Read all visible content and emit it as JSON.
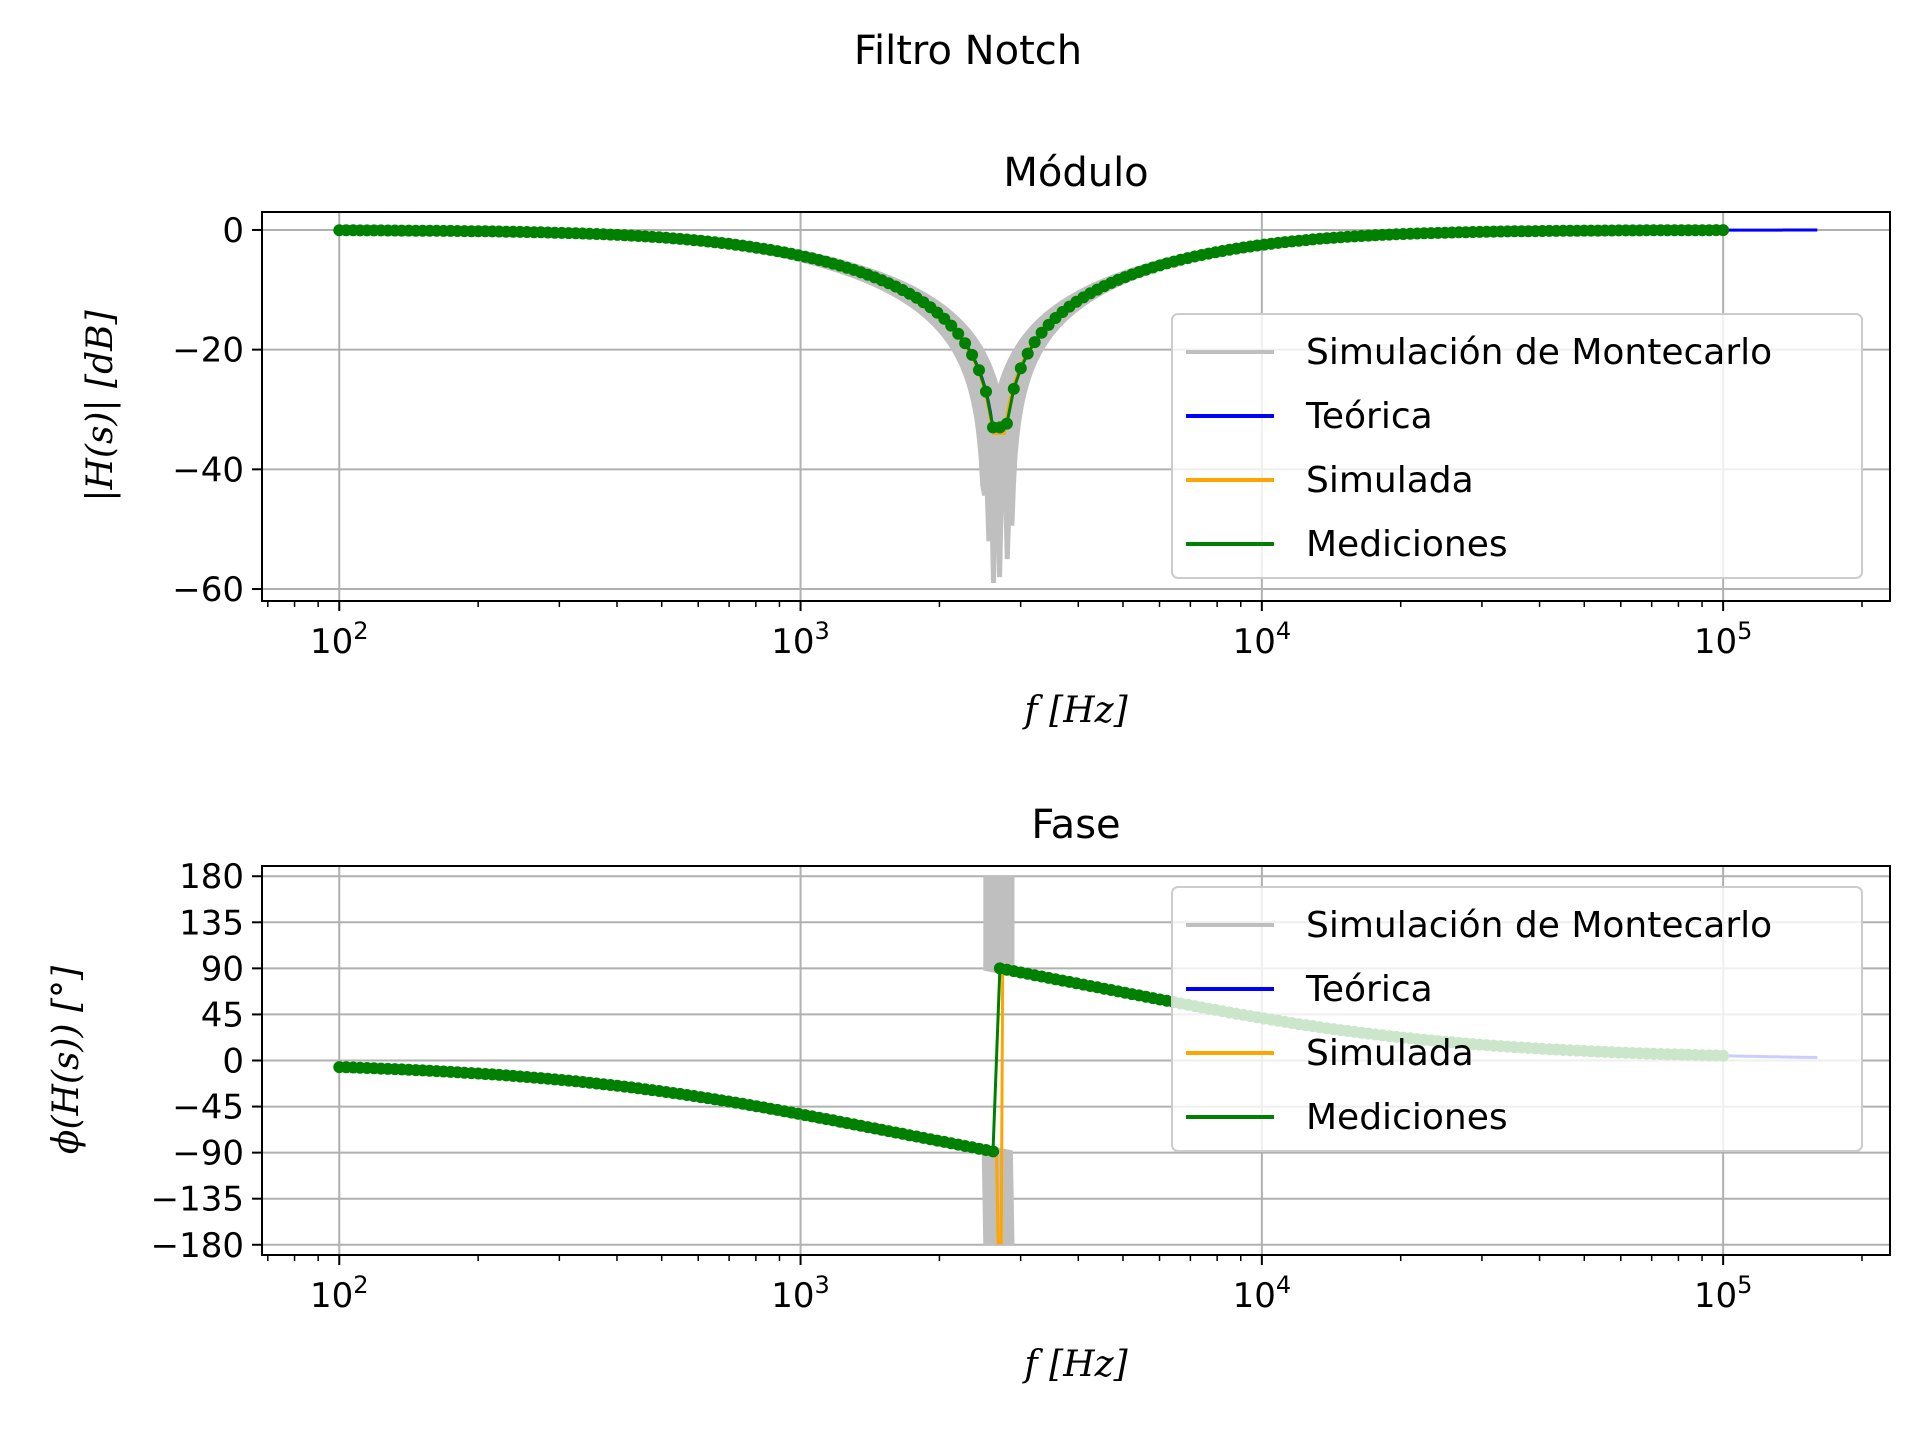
{
  "figure": {
    "suptitle": "Filtro Notch"
  },
  "legend_entries": [
    {
      "label": "Simulación de Montecarlo",
      "color": "#bfbfbf"
    },
    {
      "label": "Teórica",
      "color": "#0000ff"
    },
    {
      "label": "Simulada",
      "color": "#ffa500"
    },
    {
      "label": "Mediciones",
      "color": "#008000"
    }
  ],
  "chart_data": [
    {
      "type": "line",
      "title": "Módulo",
      "xlabel": "f [Hz]",
      "ylabel": "|H(s)| [dB]",
      "xscale": "log",
      "xlim": [
        68,
        230000
      ],
      "ylim": [
        -62,
        3
      ],
      "xticks": [
        100,
        1000,
        10000,
        100000
      ],
      "xtick_labels": [
        "10^2",
        "10^3",
        "10^4",
        "10^5"
      ],
      "yticks": [
        0,
        -20,
        -40,
        -60
      ],
      "ytick_labels": [
        "0",
        "−20",
        "−40",
        "−60"
      ],
      "grid": true,
      "legend_position": "right",
      "notch_frequency_hz": 2700,
      "series": [
        {
          "name": "Simulación de Montecarlo",
          "color": "#bfbfbf",
          "kind": "band",
          "min_depth_db": -59
        },
        {
          "name": "Teórica",
          "color": "#0000ff",
          "x_range": [
            100,
            160000
          ],
          "min_db": -33
        },
        {
          "name": "Simulada",
          "color": "#ffa500",
          "x_range": [
            100,
            100000
          ],
          "min_db": -34
        },
        {
          "name": "Mediciones",
          "color": "#008000",
          "markers": true,
          "x_range": [
            100,
            100000
          ],
          "min_db": -33
        }
      ]
    },
    {
      "type": "line",
      "title": "Fase",
      "xlabel": "f [Hz]",
      "ylabel": "ϕ(H(s)) [°]",
      "xscale": "log",
      "xlim": [
        68,
        230000
      ],
      "ylim": [
        -190,
        190
      ],
      "xticks": [
        100,
        1000,
        10000,
        100000
      ],
      "xtick_labels": [
        "10^2",
        "10^3",
        "10^4",
        "10^5"
      ],
      "yticks": [
        180,
        135,
        90,
        45,
        0,
        -45,
        -90,
        -135,
        -180
      ],
      "ytick_labels": [
        "180",
        "135",
        "90",
        "45",
        "0",
        "−45",
        "−90",
        "−135",
        "−180"
      ],
      "grid": true,
      "legend_position": "upper right",
      "notch_frequency_hz": 2700,
      "series": [
        {
          "name": "Simulación de Montecarlo",
          "color": "#bfbfbf",
          "kind": "band"
        },
        {
          "name": "Teórica",
          "color": "#0000ff",
          "x_range": [
            100,
            160000
          ]
        },
        {
          "name": "Simulada",
          "color": "#ffa500",
          "x_range": [
            100,
            100000
          ]
        },
        {
          "name": "Mediciones",
          "color": "#008000",
          "markers": true,
          "x_range": [
            100,
            100000
          ],
          "phase_at_100hz": -8,
          "phase_at_100khz": 7
        }
      ]
    }
  ]
}
